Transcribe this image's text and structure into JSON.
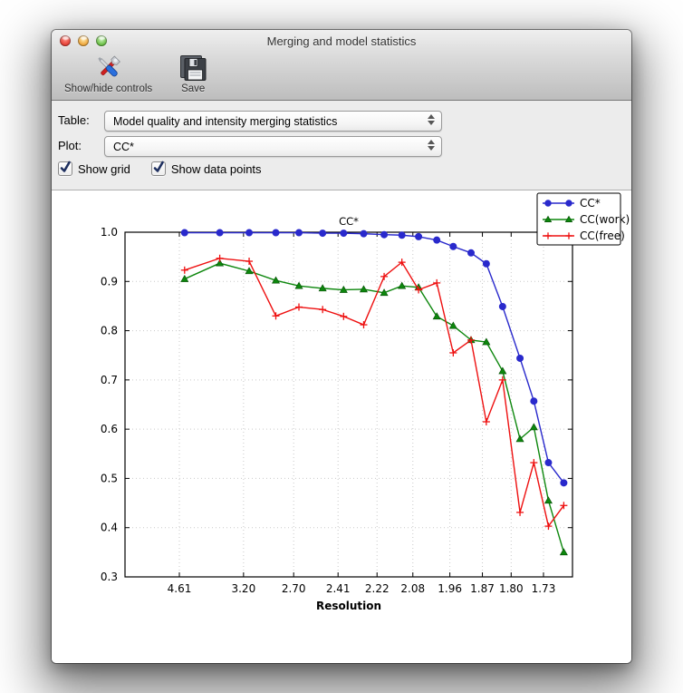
{
  "window": {
    "title": "Merging and model statistics"
  },
  "toolbar": {
    "items": [
      {
        "label": "Show/hide controls",
        "icon": "tools-icon"
      },
      {
        "label": "Save",
        "icon": "floppy-disk-icon"
      }
    ]
  },
  "controls": {
    "table": {
      "label": "Table:",
      "value": "Model quality and intensity merging statistics"
    },
    "plot": {
      "label": "Plot:",
      "value": "CC*"
    },
    "checkboxes": [
      {
        "label": "Show grid",
        "checked": true
      },
      {
        "label": "Show data points",
        "checked": true
      }
    ]
  },
  "chart_data": {
    "type": "line",
    "title": "CC*",
    "xlabel": "Resolution",
    "ylabel": "",
    "ylim": [
      0.3,
      1.0
    ],
    "yticks": [
      1.0,
      0.9,
      0.8,
      0.7,
      0.6,
      0.5,
      0.4,
      0.3
    ],
    "grid": true,
    "show_data_points": true,
    "legend_position": "upper right",
    "x_axis": {
      "unit": "resolution (A)",
      "scale": "1/d^2",
      "range_s": [
        0.00421,
        0.35699
      ]
    },
    "xtick_resolutions": [
      4.61,
      3.2,
      2.7,
      2.41,
      2.22,
      2.08,
      1.96,
      1.87,
      1.8,
      1.73
    ],
    "xtick_labels": [
      "4.61",
      "3.20",
      "2.70",
      "2.41",
      "2.22",
      "2.08",
      "1.96",
      "1.87",
      "1.80",
      "1.73"
    ],
    "x_resolution": [
      4.42,
      3.56,
      3.13,
      2.85,
      2.66,
      2.5,
      2.38,
      2.28,
      2.19,
      2.12,
      2.06,
      2.0,
      1.95,
      1.9,
      1.86,
      1.82,
      1.78,
      1.75,
      1.72,
      1.69
    ],
    "series": [
      {
        "name": "CC*",
        "color": "#2929cc",
        "marker": "circle",
        "values": [
          0.999,
          0.999,
          0.999,
          0.999,
          0.999,
          0.998,
          0.998,
          0.997,
          0.995,
          0.994,
          0.991,
          0.984,
          0.971,
          0.958,
          0.936,
          0.849,
          0.744,
          0.657,
          0.532,
          0.491
        ]
      },
      {
        "name": "CC(work)",
        "color": "#0d870d",
        "marker": "triangle",
        "values": [
          0.905,
          0.937,
          0.921,
          0.902,
          0.891,
          0.886,
          0.883,
          0.884,
          0.877,
          0.891,
          0.888,
          0.829,
          0.81,
          0.781,
          0.777,
          0.718,
          0.58,
          0.604,
          0.455,
          0.35
        ]
      },
      {
        "name": "CC(free)",
        "color": "#ee1010",
        "marker": "plus",
        "values": [
          0.923,
          0.947,
          0.941,
          0.83,
          0.848,
          0.843,
          0.829,
          0.812,
          0.91,
          0.939,
          0.883,
          0.897,
          0.755,
          0.781,
          0.615,
          0.7,
          0.431,
          0.532,
          0.403,
          0.445
        ]
      }
    ]
  }
}
